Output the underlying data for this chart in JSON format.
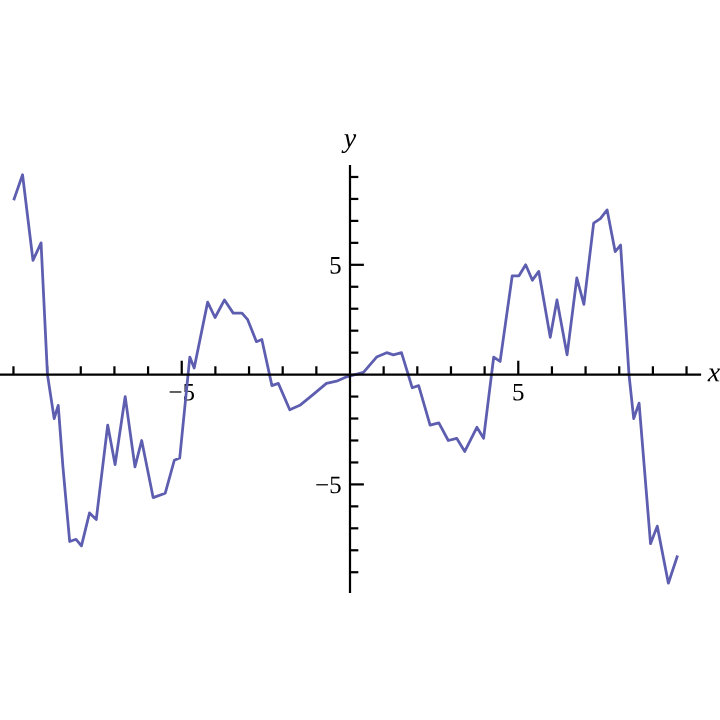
{
  "chart_data": {
    "type": "line",
    "xlabel": "x",
    "ylabel": "y",
    "xlim": [
      -10.4,
      10.4
    ],
    "ylim": [
      -9.9,
      9.5
    ],
    "xticks": [
      {
        "value": -10,
        "label": null
      },
      {
        "value": -9,
        "label": null
      },
      {
        "value": -8,
        "label": null
      },
      {
        "value": -7,
        "label": null
      },
      {
        "value": -6,
        "label": null
      },
      {
        "value": -5,
        "label": "−5"
      },
      {
        "value": -4,
        "label": null
      },
      {
        "value": -3,
        "label": null
      },
      {
        "value": -2,
        "label": null
      },
      {
        "value": -1,
        "label": null
      },
      {
        "value": 1,
        "label": null
      },
      {
        "value": 2,
        "label": null
      },
      {
        "value": 3,
        "label": null
      },
      {
        "value": 4,
        "label": null
      },
      {
        "value": 5,
        "label": "5"
      },
      {
        "value": 6,
        "label": null
      },
      {
        "value": 7,
        "label": null
      },
      {
        "value": 8,
        "label": null
      },
      {
        "value": 9,
        "label": null
      },
      {
        "value": 10,
        "label": null
      }
    ],
    "yticks": [
      {
        "value": -9,
        "label": null
      },
      {
        "value": -8,
        "label": null
      },
      {
        "value": -7,
        "label": null
      },
      {
        "value": -6,
        "label": null
      },
      {
        "value": -5,
        "label": "−5"
      },
      {
        "value": -4,
        "label": null
      },
      {
        "value": -3,
        "label": null
      },
      {
        "value": -2,
        "label": null
      },
      {
        "value": -1,
        "label": null
      },
      {
        "value": 1,
        "label": null
      },
      {
        "value": 2,
        "label": null
      },
      {
        "value": 3,
        "label": null
      },
      {
        "value": 4,
        "label": null
      },
      {
        "value": 5,
        "label": "5"
      },
      {
        "value": 6,
        "label": null
      },
      {
        "value": 7,
        "label": null
      },
      {
        "value": 8,
        "label": null
      },
      {
        "value": 9,
        "label": null
      }
    ],
    "grid": false,
    "marker": "none",
    "line_style": "solid",
    "series": [
      {
        "color": "#5e5eb0",
        "x": [
          -9.98,
          -9.73,
          -9.42,
          -9.18,
          -8.99,
          -8.79,
          -8.67,
          -8.53,
          -8.33,
          -8.14,
          -7.98,
          -7.74,
          -7.54,
          -7.2,
          -6.98,
          -6.68,
          -6.39,
          -6.19,
          -5.85,
          -5.49,
          -5.22,
          -5.06,
          -4.76,
          -4.63,
          -4.23,
          -4.01,
          -3.73,
          -3.47,
          -3.21,
          -3.04,
          -2.78,
          -2.62,
          -2.32,
          -2.13,
          -1.79,
          -1.49,
          -1.09,
          -0.7,
          -0.4,
          -0.1,
          0.4,
          0.79,
          1.09,
          1.29,
          1.53,
          1.85,
          2.04,
          2.38,
          2.64,
          2.92,
          3.17,
          3.41,
          3.77,
          3.97,
          4.27,
          4.46,
          4.82,
          5.02,
          5.22,
          5.42,
          5.61,
          5.95,
          6.15,
          6.45,
          6.74,
          6.95,
          7.24,
          7.44,
          7.64,
          7.88,
          8.04,
          8.29,
          8.43,
          8.59,
          8.93,
          9.13,
          9.46,
          9.72
        ],
        "values": [
          8.0,
          9.1,
          5.2,
          6.0,
          0.0,
          -2.0,
          -1.4,
          -4.2,
          -7.6,
          -7.5,
          -7.8,
          -6.3,
          -6.6,
          -2.3,
          -4.1,
          -1.0,
          -4.2,
          -3.0,
          -5.6,
          -5.4,
          -3.9,
          -3.8,
          0.8,
          0.3,
          3.3,
          2.6,
          3.4,
          2.8,
          2.8,
          2.5,
          1.5,
          1.6,
          -0.5,
          -0.4,
          -1.6,
          -1.4,
          -0.9,
          -0.4,
          -0.3,
          -0.1,
          0.1,
          0.8,
          1.0,
          0.9,
          1.0,
          -0.6,
          -0.5,
          -2.3,
          -2.2,
          -3.0,
          -2.9,
          -3.5,
          -2.4,
          -2.9,
          0.8,
          0.6,
          4.5,
          4.5,
          5.0,
          4.3,
          4.7,
          1.7,
          3.4,
          0.9,
          4.4,
          3.2,
          6.9,
          7.1,
          7.5,
          5.6,
          5.9,
          0.0,
          -2.0,
          -1.3,
          -7.7,
          -6.9,
          -9.5,
          -8.3
        ]
      }
    ]
  }
}
